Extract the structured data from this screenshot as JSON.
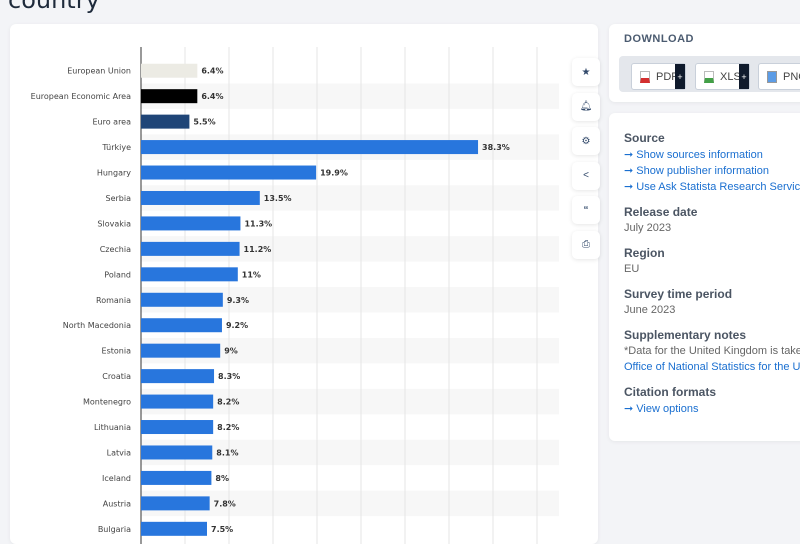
{
  "page": {
    "title": "country"
  },
  "toolbar": {
    "icons": [
      "star-icon",
      "bell-icon",
      "gear-icon",
      "share-icon",
      "quote-icon",
      "print-icon"
    ]
  },
  "download": {
    "title": "DOWNLOAD",
    "buttons": [
      {
        "label": "PDF",
        "color": "#d32f2f"
      },
      {
        "label": "XLS",
        "color": "#43a047"
      },
      {
        "label": "PNG",
        "color": "#1e88e5"
      }
    ]
  },
  "info": {
    "source": {
      "heading": "Source",
      "links": [
        "Show sources information",
        "Show publisher information",
        "Use Ask Statista Research Service"
      ]
    },
    "release": {
      "heading": "Release date",
      "value": "July 2023"
    },
    "region": {
      "heading": "Region",
      "value": "EU"
    },
    "survey": {
      "heading": "Survey time period",
      "value": "June 2023"
    },
    "notes": {
      "heading": "Supplementary notes",
      "text": "*Data for the United Kingdom is taken",
      "link": "Office of National Statistics for the UK"
    },
    "citation": {
      "heading": "Citation formats",
      "link": "View options"
    }
  },
  "chart_data": {
    "type": "bar",
    "orientation": "horizontal",
    "xlim": [
      0,
      45
    ],
    "grid": true,
    "categories": [
      "European Union",
      "European Economic Area",
      "Euro area",
      "Türkiye",
      "Hungary",
      "Serbia",
      "Slovakia",
      "Czechia",
      "Poland",
      "Romania",
      "North Macedonia",
      "Estonia",
      "Croatia",
      "Montenegro",
      "Lithuania",
      "Latvia",
      "Iceland",
      "Austria",
      "Bulgaria"
    ],
    "values": [
      6.4,
      6.4,
      5.5,
      38.3,
      19.9,
      13.5,
      11.3,
      11.2,
      11,
      9.3,
      9.2,
      9,
      8.3,
      8.2,
      8.2,
      8.1,
      8,
      7.8,
      7.5
    ],
    "labels": [
      "6.4%",
      "6.4%",
      "5.5%",
      "38.3%",
      "19.9%",
      "13.5%",
      "11.3%",
      "11.2%",
      "11%",
      "9.3%",
      "9.2%",
      "9%",
      "8.3%",
      "8.2%",
      "8.2%",
      "8.1%",
      "8%",
      "7.8%",
      "7.5%"
    ],
    "colors": [
      "#ecebe4",
      "#000000",
      "#1f4577",
      "#2876dd",
      "#2876dd",
      "#2876dd",
      "#2876dd",
      "#2876dd",
      "#2876dd",
      "#2876dd",
      "#2876dd",
      "#2876dd",
      "#2876dd",
      "#2876dd",
      "#2876dd",
      "#2876dd",
      "#2876dd",
      "#2876dd",
      "#2876dd"
    ]
  }
}
